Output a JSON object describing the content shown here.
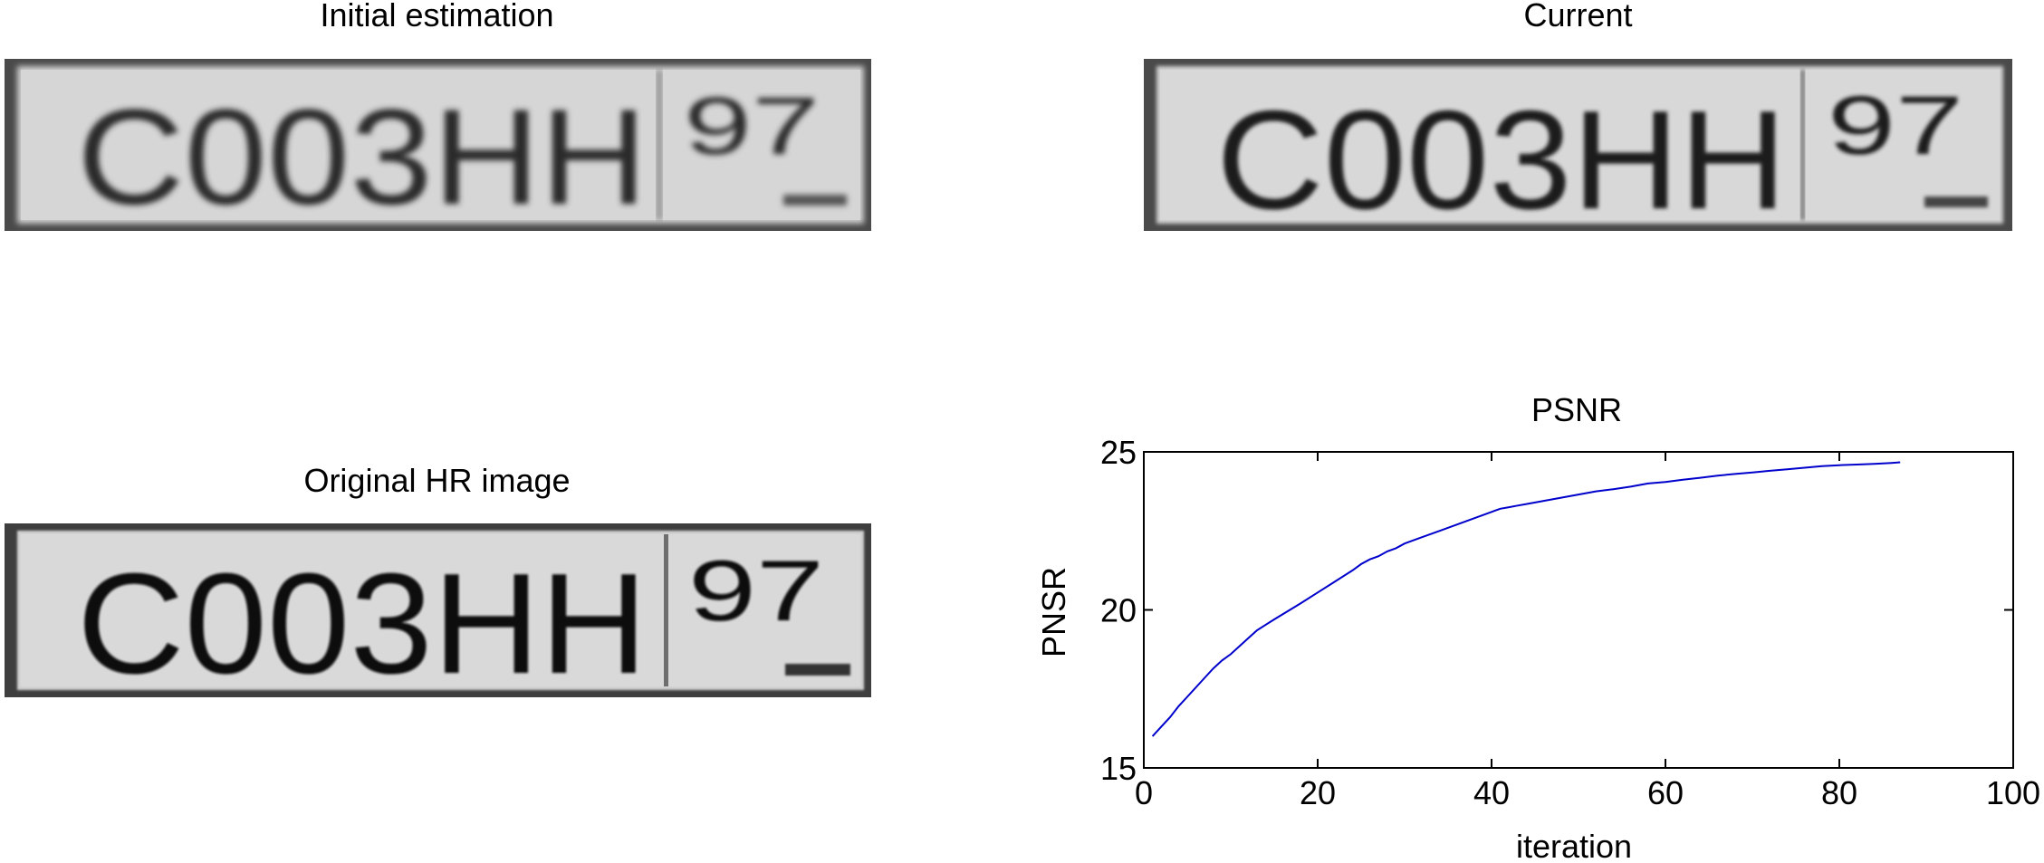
{
  "panels": {
    "initial": {
      "title": "Initial estimation",
      "plate_main": "C003HH",
      "plate_region": "97"
    },
    "current": {
      "title": "Current",
      "plate_main": "C003HH",
      "plate_region": "97"
    },
    "original": {
      "title": "Original HR image",
      "plate_main": "C003HH",
      "plate_region": "97"
    }
  },
  "chart_data": {
    "type": "line",
    "title": "PSNR",
    "xlabel": "iteration",
    "ylabel": "PNSR",
    "xlim": [
      0,
      100
    ],
    "ylim": [
      15,
      25
    ],
    "xticks": [
      "0",
      "20",
      "40",
      "60",
      "80",
      "100"
    ],
    "yticks": [
      "15",
      "20",
      "25"
    ],
    "grid": false,
    "line_color": "#0000cc",
    "x": [
      1,
      2,
      3,
      4,
      5,
      6,
      7,
      8,
      9,
      10,
      12,
      13,
      15,
      18,
      20,
      22,
      24,
      25,
      26,
      27,
      28,
      29,
      30,
      32,
      34,
      36,
      38,
      40,
      41,
      42,
      43,
      44,
      46,
      48,
      50,
      52,
      54,
      56,
      58,
      60,
      62,
      64,
      66,
      68,
      70,
      72,
      74,
      76,
      78,
      80,
      82,
      84,
      86,
      87
    ],
    "y": [
      16.0,
      16.3,
      16.6,
      16.95,
      17.25,
      17.55,
      17.85,
      18.15,
      18.4,
      18.6,
      19.1,
      19.35,
      19.7,
      20.2,
      20.55,
      20.9,
      21.25,
      21.45,
      21.6,
      21.7,
      21.85,
      21.95,
      22.1,
      22.3,
      22.5,
      22.7,
      22.9,
      23.1,
      23.2,
      23.25,
      23.3,
      23.35,
      23.45,
      23.55,
      23.65,
      23.75,
      23.82,
      23.9,
      24.0,
      24.05,
      24.12,
      24.18,
      24.25,
      24.3,
      24.35,
      24.4,
      24.45,
      24.5,
      24.55,
      24.58,
      24.6,
      24.62,
      24.65,
      24.67
    ]
  }
}
